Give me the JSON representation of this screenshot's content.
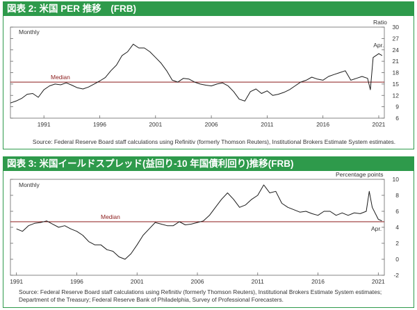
{
  "charts": [
    {
      "header": "図表 2: 米国 PER 推移　(FRB)",
      "frequency_label": "Monthly",
      "unit_label": "Ratio",
      "median_label": "Median",
      "end_label": "Apr.",
      "caption_lines": [
        "Source: Federal Reserve Board staff calculations using Refinitiv (formerly Thomson Reuters), Institutional Brokers Estimate System estimates."
      ]
    },
    {
      "header": "図表 3: 米国イールドスプレッド(益回り-10 年国債利回り)推移(FRB)",
      "frequency_label": "Monthly",
      "unit_label": "Percentage points",
      "median_label": "Median",
      "end_label": "Apr.",
      "caption_lines": [
        "Source: Federal Reserve Board staff calculations using Refinitiv (formerly Thomson Reuters), Institutional Brokers Estimate System estimates;",
        "Department of the Treasury; Federal Reserve Bank of Philadelphia, Survey of Professional Forecasters."
      ]
    }
  ],
  "colors": {
    "header": "#2e9a4b",
    "line": "#1a1a1a",
    "median": "#8b1a1a"
  },
  "chart_data": [
    {
      "type": "line",
      "title": "図表 2: 米国 PER 推移　(FRB)",
      "ylabel": "Ratio",
      "ylim": [
        6,
        30
      ],
      "yticks": [
        6,
        9,
        12,
        15,
        18,
        21,
        24,
        27,
        30
      ],
      "xlim": [
        1988.0,
        2021.5
      ],
      "xticks": [
        1991,
        1996,
        2001,
        2006,
        2011,
        2016,
        2021
      ],
      "median": 15.5,
      "series": [
        {
          "x": [
            1988.0,
            1988.5,
            1989.0,
            1989.5,
            1990.0,
            1990.5,
            1991.0,
            1991.5,
            1992.0,
            1992.5,
            1993.0,
            1993.5,
            1994.0,
            1994.5,
            1995.0,
            1995.5,
            1996.0,
            1996.5,
            1997.0,
            1997.5,
            1998.0,
            1998.5,
            1999.0,
            1999.5,
            2000.0,
            2000.5,
            2001.0,
            2001.5,
            2002.0,
            2002.5,
            2003.0,
            2003.5,
            2004.0,
            2004.5,
            2005.0,
            2005.5,
            2006.0,
            2006.5,
            2007.0,
            2007.5,
            2008.0,
            2008.5,
            2009.0,
            2009.5,
            2010.0,
            2010.5,
            2011.0,
            2011.5,
            2012.0,
            2012.5,
            2013.0,
            2013.5,
            2014.0,
            2014.5,
            2015.0,
            2015.5,
            2016.0,
            2016.5,
            2017.0,
            2017.5,
            2018.0,
            2018.5,
            2019.0,
            2019.5,
            2020.0,
            2020.25,
            2020.5,
            2021.0,
            2021.3
          ],
          "y": [
            10.0,
            10.5,
            11.2,
            12.3,
            12.5,
            11.5,
            13.5,
            14.5,
            15.0,
            14.8,
            15.3,
            14.7,
            14.0,
            13.7,
            14.2,
            15.0,
            15.8,
            16.7,
            18.5,
            20.0,
            22.5,
            23.5,
            25.5,
            24.5,
            24.5,
            23.5,
            22.0,
            20.5,
            18.5,
            16.0,
            15.5,
            16.5,
            16.3,
            15.5,
            15.0,
            14.7,
            14.5,
            15.0,
            15.3,
            14.5,
            13.0,
            11.0,
            10.5,
            13.0,
            13.7,
            12.5,
            13.2,
            12.0,
            12.3,
            12.8,
            13.5,
            14.5,
            15.5,
            16.0,
            16.8,
            16.3,
            16.0,
            17.0,
            17.5,
            18.0,
            18.5,
            16.0,
            16.5,
            17.0,
            16.5,
            13.5,
            22.0,
            23.0,
            22.5
          ]
        }
      ]
    },
    {
      "type": "line",
      "title": "図表 3: 米国イールドスプレッド(益回り-10 年国債利回り)推移(FRB)",
      "ylabel": "Percentage points",
      "ylim": [
        -2,
        10
      ],
      "yticks": [
        -2,
        0,
        2,
        4,
        6,
        8,
        10
      ],
      "xlim": [
        1990.5,
        2021.5
      ],
      "xticks": [
        1991,
        1996,
        2001,
        2006,
        2011,
        2016,
        2021
      ],
      "median": 4.7,
      "series": [
        {
          "x": [
            1991.0,
            1991.5,
            1992.0,
            1992.5,
            1993.0,
            1993.5,
            1994.0,
            1994.5,
            1995.0,
            1995.5,
            1996.0,
            1996.5,
            1997.0,
            1997.5,
            1998.0,
            1998.5,
            1999.0,
            1999.5,
            2000.0,
            2000.5,
            2001.0,
            2001.5,
            2002.0,
            2002.5,
            2003.0,
            2003.5,
            2004.0,
            2004.5,
            2005.0,
            2005.5,
            2006.0,
            2006.5,
            2007.0,
            2007.5,
            2008.0,
            2008.5,
            2009.0,
            2009.5,
            2010.0,
            2010.5,
            2011.0,
            2011.5,
            2012.0,
            2012.5,
            2013.0,
            2013.5,
            2014.0,
            2014.5,
            2015.0,
            2015.5,
            2016.0,
            2016.5,
            2017.0,
            2017.5,
            2018.0,
            2018.5,
            2019.0,
            2019.5,
            2020.0,
            2020.25,
            2020.5,
            2021.0,
            2021.3
          ],
          "y": [
            3.8,
            3.5,
            4.2,
            4.5,
            4.6,
            4.8,
            4.4,
            4.0,
            4.2,
            3.8,
            3.5,
            3.0,
            2.2,
            1.8,
            1.8,
            1.2,
            1.0,
            0.3,
            0.0,
            0.7,
            1.8,
            3.0,
            3.8,
            4.6,
            4.4,
            4.2,
            4.2,
            4.7,
            4.3,
            4.4,
            4.6,
            4.8,
            5.5,
            6.5,
            7.5,
            8.3,
            7.5,
            6.5,
            6.8,
            7.5,
            8.0,
            9.3,
            8.3,
            8.5,
            7.0,
            6.5,
            6.2,
            5.9,
            6.0,
            5.7,
            5.5,
            6.0,
            6.0,
            5.5,
            5.8,
            5.5,
            5.8,
            5.7,
            6.0,
            8.5,
            6.5,
            5.0,
            4.8
          ]
        }
      ]
    }
  ]
}
